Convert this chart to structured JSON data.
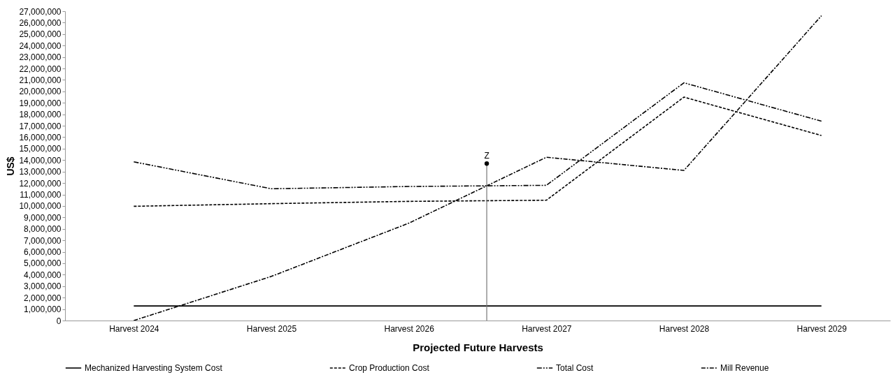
{
  "chart_data": {
    "type": "line",
    "xlabel": "Projected Future Harvests",
    "ylabel": "US$",
    "categories": [
      "Harvest 2024",
      "Harvest 2025",
      "Harvest 2026",
      "Harvest 2027",
      "Harvest 2028",
      "Harvest 2029"
    ],
    "ylim": [
      0,
      27000000
    ],
    "yticks": [
      {
        "value": 0,
        "label": "0"
      },
      {
        "value": 1000000,
        "label": "1,000,000"
      },
      {
        "value": 2000000,
        "label": "2,000,000"
      },
      {
        "value": 3000000,
        "label": "3,000,000"
      },
      {
        "value": 4000000,
        "label": "4,000,000"
      },
      {
        "value": 5000000,
        "label": "5,000,000"
      },
      {
        "value": 6000000,
        "label": "6,000,000"
      },
      {
        "value": 7000000,
        "label": "7,000,000"
      },
      {
        "value": 8000000,
        "label": "8,000,000"
      },
      {
        "value": 9000000,
        "label": "9,000,000"
      },
      {
        "value": 10000000,
        "label": "10,000,000"
      },
      {
        "value": 11000000,
        "label": "11,000,000"
      },
      {
        "value": 12000000,
        "label": "12,000,000"
      },
      {
        "value": 13000000,
        "label": "13,000,000"
      },
      {
        "value": 14000000,
        "label": "14,000,000"
      },
      {
        "value": 15000000,
        "label": "15,000,000"
      },
      {
        "value": 16000000,
        "label": "16,000,000"
      },
      {
        "value": 17000000,
        "label": "17,000,000"
      },
      {
        "value": 18000000,
        "label": "18,000,000"
      },
      {
        "value": 19000000,
        "label": "19,000,000"
      },
      {
        "value": 20000000,
        "label": "20,000,000"
      },
      {
        "value": 21000000,
        "label": "21,000,000"
      },
      {
        "value": 22000000,
        "label": "22,000,000"
      },
      {
        "value": 23000000,
        "label": "23,000,000"
      },
      {
        "value": 24000000,
        "label": "24,000,000"
      },
      {
        "value": 25000000,
        "label": "25,000,000"
      },
      {
        "value": 26000000,
        "label": "26,000,000"
      },
      {
        "value": 27000000,
        "label": "27,000,000"
      }
    ],
    "series": [
      {
        "name": "Mechanized Harvesting System Cost",
        "color": "#000000",
        "line_style": "solid",
        "values": [
          1270000,
          1270000,
          1270000,
          1270000,
          1270000,
          1270000
        ]
      },
      {
        "name": "Crop Production Cost",
        "color": "#000000",
        "line_style": "dashed",
        "values": [
          9970000,
          10200000,
          10400000,
          10500000,
          19500000,
          16150000
        ]
      },
      {
        "name": "Total Cost",
        "color": "#000000",
        "line_style": "dashdotdot",
        "values": [
          13850000,
          11500000,
          11700000,
          11800000,
          20750000,
          17400000
        ]
      },
      {
        "name": "Mill Revenue",
        "color": "#000000",
        "line_style": "dashdot",
        "values": [
          0,
          3850000,
          8500000,
          14250000,
          13100000,
          26600000
        ]
      }
    ],
    "annotations": [
      {
        "text": "Z",
        "y": 13700000
      }
    ],
    "grid": false,
    "legend": "bottom",
    "marker": "none"
  }
}
